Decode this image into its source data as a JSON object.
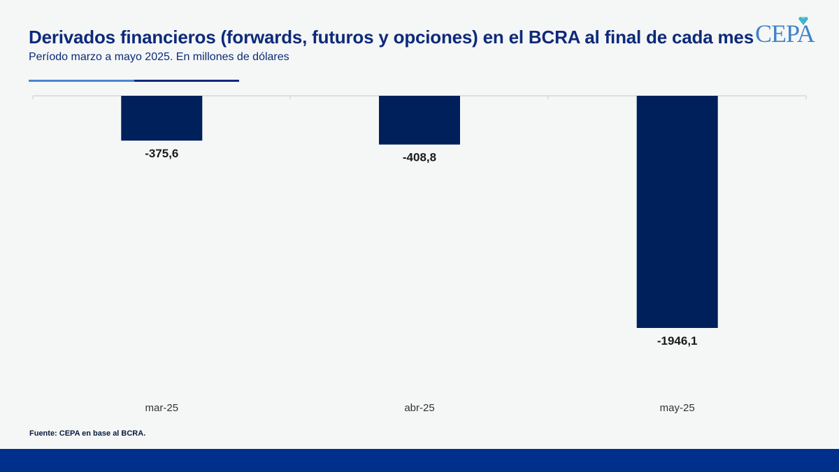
{
  "header": {
    "title": "Derivados financieros (forwards, futuros y opciones) en el BCRA al final de cada mes",
    "subtitle": "Período marzo a mayo 2025. En millones de dólares"
  },
  "logo": {
    "text": "CEPA"
  },
  "source": "Fuente: CEPA en base al BCRA.",
  "colors": {
    "title": "#0d2a7a",
    "bar": "#00205b",
    "footer": "#01308c",
    "logo": "#3f82c9",
    "rule_light": "#4a86d0",
    "rule_dark": "#0d2a7a"
  },
  "chart_data": {
    "type": "bar",
    "categories": [
      "mar-25",
      "abr-25",
      "may-25"
    ],
    "values": [
      -375.6,
      -408.8,
      -1946.1
    ],
    "value_labels": [
      "-375,6",
      "-408,8",
      "-1946,1"
    ],
    "title": "Derivados financieros (forwards, futuros y opciones) en el BCRA al final de cada mes",
    "subtitle": "Período marzo a mayo 2025. En millones de dólares",
    "xlabel": "",
    "ylabel": "",
    "ylim": [
      -2500,
      0
    ],
    "x_axis_position": "top",
    "grid": false,
    "legend": "none"
  }
}
